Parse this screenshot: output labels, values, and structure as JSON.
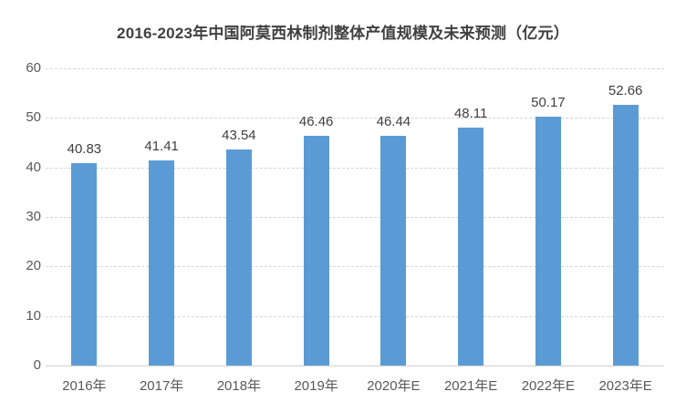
{
  "chart_data": {
    "type": "bar",
    "title": "2016-2023年中国阿莫西林制剂整体产值规模及未来预测（亿元）",
    "categories": [
      "2016年",
      "2017年",
      "2018年",
      "2019年",
      "2020年E",
      "2021年E",
      "2022年E",
      "2023年E"
    ],
    "values": [
      40.83,
      41.41,
      43.54,
      46.46,
      46.44,
      48.11,
      50.17,
      52.66
    ],
    "value_labels": [
      "40.83",
      "41.41",
      "43.54",
      "46.46",
      "46.44",
      "48.11",
      "50.17",
      "52.66"
    ],
    "xlabel": "",
    "ylabel": "",
    "ylim": [
      0,
      60
    ],
    "yticks": [
      0,
      10,
      20,
      30,
      40,
      50,
      60
    ],
    "grid": true,
    "legend": "none",
    "colors": {
      "bar": "#5B9BD5",
      "title_text": "#404040",
      "data_label_text": "#404040",
      "axis_text": "#595959",
      "gridline": "#D6D6D6",
      "background": "#FFFFFF"
    }
  }
}
